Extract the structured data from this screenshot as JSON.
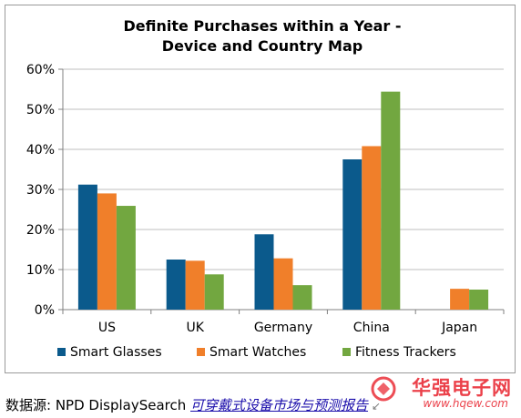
{
  "chart_data": {
    "type": "bar",
    "title": [
      "Definite Purchases within a Year -",
      "Device and Country Map"
    ],
    "categories": [
      "US",
      "UK",
      "Germany",
      "China",
      "Japan"
    ],
    "y_ticks": [
      "0%",
      "10%",
      "20%",
      "30%",
      "40%",
      "50%",
      "60%"
    ],
    "ylim": [
      0,
      60
    ],
    "y_unit": "%",
    "grid": true,
    "legend_position": "bottom",
    "series": [
      {
        "name": "Smart Glasses",
        "color": "#0b5a8c",
        "values": [
          31.2,
          12.5,
          18.8,
          37.5,
          null
        ]
      },
      {
        "name": "Smart Watches",
        "color": "#f07f2a",
        "values": [
          29.0,
          12.2,
          12.8,
          40.8,
          5.2
        ]
      },
      {
        "name": "Fitness Trackers",
        "color": "#72a740",
        "values": [
          25.9,
          8.8,
          6.1,
          54.4,
          5.0
        ]
      }
    ]
  },
  "footer": {
    "prefix": "数据源: NPD DisplaySearch ",
    "link": "可穿戴式设备市场与预测报告",
    "mark": "↙"
  },
  "watermark": {
    "main": "华强电子网",
    "url": "www.hqew.com",
    "color": "#e8202b"
  }
}
